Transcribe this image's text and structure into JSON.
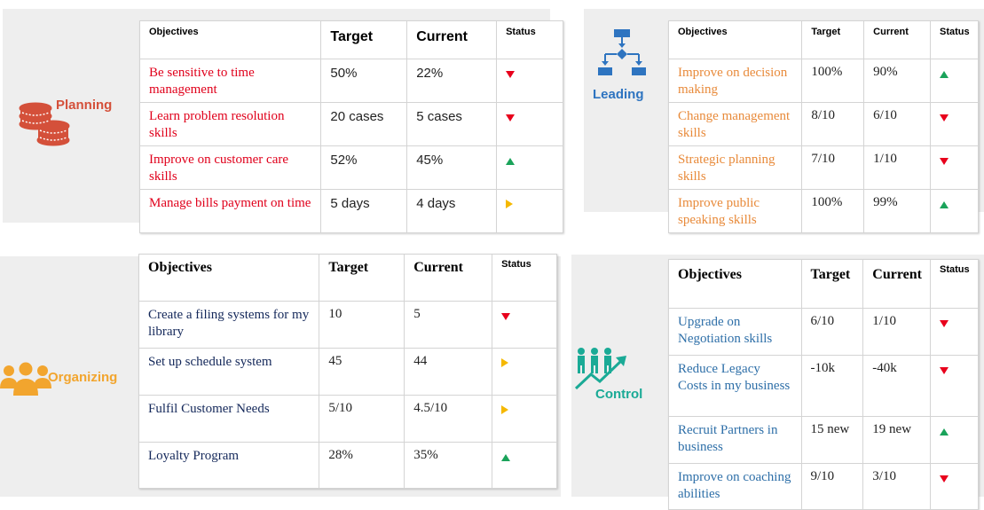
{
  "colors": {
    "panel_bg": "#eeeeee",
    "planning_accent": "#d4503a",
    "leading_accent": "#2e74c0",
    "organizing_accent": "#f2a52e",
    "control_accent": "#1aaa96",
    "status_down": "#e8001c",
    "status_up": "#1aa35a",
    "status_neutral": "#f5b800"
  },
  "planning": {
    "label": "Planning",
    "icon": "coins-icon",
    "headers": {
      "objectives": "Objectives",
      "target": "Target",
      "current": "Current",
      "status": "Status"
    },
    "rows": [
      {
        "objective": "Be sensitive to time management",
        "target": "50%",
        "current": "22%",
        "status": "down"
      },
      {
        "objective": "Learn problem resolution skills",
        "target": "20 cases",
        "current": "5 cases",
        "status": "down"
      },
      {
        "objective": "Improve on customer care skills",
        "target": "52%",
        "current": "45%",
        "status": "up"
      },
      {
        "objective": "Manage bills payment on time",
        "target": "5 days",
        "current": "4 days",
        "status": "neutral"
      }
    ]
  },
  "leading": {
    "label": "Leading",
    "icon": "flowchart-icon",
    "headers": {
      "objectives": "Objectives",
      "target": "Target",
      "current": "Current",
      "status": "Status"
    },
    "rows": [
      {
        "objective": "Improve on decision making",
        "target": "100%",
        "current": "90%",
        "status": "up"
      },
      {
        "objective": "Change management skills",
        "target": "8/10",
        "current": "6/10",
        "status": "down"
      },
      {
        "objective": "Strategic planning skills",
        "target": "7/10",
        "current": "1/10",
        "status": "down"
      },
      {
        "objective": "Improve public speaking skills",
        "target": "100%",
        "current": "99%",
        "status": "up"
      }
    ]
  },
  "organizing": {
    "label": "Organizing",
    "icon": "team-icon",
    "headers": {
      "objectives": "Objectives",
      "target": "Target",
      "current": "Current",
      "status": "Status"
    },
    "rows": [
      {
        "objective": "Create a filing systems for my library",
        "target": "10",
        "current": "5",
        "status": "down"
      },
      {
        "objective": "Set up schedule system",
        "target": "45",
        "current": "44",
        "status": "neutral"
      },
      {
        "objective": "Fulfil Customer Needs",
        "target": "5/10",
        "current": "4.5/10",
        "status": "neutral"
      },
      {
        "objective": "Loyalty Program",
        "target": "28%",
        "current": "35%",
        "status": "up"
      }
    ]
  },
  "control": {
    "label": "Control",
    "icon": "growth-team-icon",
    "headers": {
      "objectives": "Objectives",
      "target": "Target",
      "current": "Current",
      "status": "Status"
    },
    "rows": [
      {
        "objective": "Upgrade on Negotiation skills",
        "target": "6/10",
        "current": "1/10",
        "status": "down"
      },
      {
        "objective": "Reduce Legacy Costs in my business",
        "target": "-10k",
        "current": "-40k",
        "status": "down"
      },
      {
        "objective": "Recruit Partners in business",
        "target": "15 new",
        "current": "19 new",
        "status": "up"
      },
      {
        "objective": "Improve on coaching abilities",
        "target": "9/10",
        "current": "3/10",
        "status": "down"
      }
    ]
  }
}
